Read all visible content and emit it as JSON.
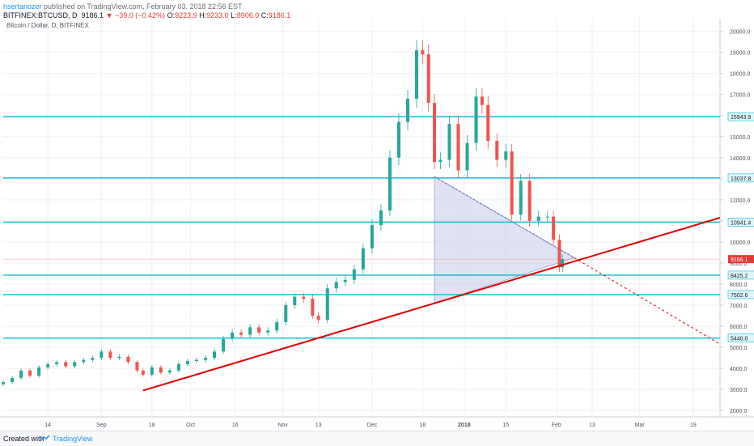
{
  "header": {
    "author": "hsertanozer",
    "published": "published on TradingView.com, February 03, 2018 22:56 EST",
    "symbol": "BITFINEX:BTCUSD, D",
    "last": "9186.1",
    "change": "−39.0 (−0.42%)",
    "o_label": "O:",
    "o_value": "9223.9",
    "h_label": "H:",
    "h_value": "9233.0",
    "l_label": "L:",
    "l_value": "8906.0",
    "c_label": "C:",
    "c_value": "9186.1"
  },
  "footer": {
    "created_with": "Created with",
    "brand": "TradingView"
  },
  "colors": {
    "up": "#26a69a",
    "down": "#ef5350",
    "trendline": "#e00000",
    "level": "#00bcd4",
    "triangle_fill": "#c5cae9",
    "axis_text": "#4c525e",
    "price_tag": "#e53935"
  },
  "chart_data": {
    "type": "candlestick",
    "title": "Bitcoin / Dollar, D, BITFINEX",
    "x_axis": {
      "range": [
        "2017-07-30",
        "2018-03-28"
      ],
      "ticks": [
        {
          "date": "2017-08-14",
          "label": "14"
        },
        {
          "date": "2017-09-01",
          "label": "Sep"
        },
        {
          "date": "2017-09-18",
          "label": "18"
        },
        {
          "date": "2017-10-01",
          "label": "Oct"
        },
        {
          "date": "2017-10-16",
          "label": "16"
        },
        {
          "date": "2017-11-01",
          "label": "Nov"
        },
        {
          "date": "2017-11-13",
          "label": "13"
        },
        {
          "date": "2017-12-01",
          "label": "Dec"
        },
        {
          "date": "2017-12-18",
          "label": "18"
        },
        {
          "date": "2018-01-01",
          "label": "2018"
        },
        {
          "date": "2018-01-15",
          "label": "15"
        },
        {
          "date": "2018-02-01",
          "label": "Feb"
        },
        {
          "date": "2018-02-13",
          "label": "13"
        },
        {
          "date": "2018-03-01",
          "label": "Mar"
        },
        {
          "date": "2018-03-19",
          "label": "19"
        }
      ]
    },
    "y_axis": {
      "range": [
        1700,
        20600
      ],
      "ticks": [
        "2000.0",
        "3000.0",
        "4000.0",
        "5000.0",
        "6000.0",
        "7000.0",
        "8000.0",
        "9000.0",
        "10000.0",
        "11000.0",
        "12000.0",
        "13000.0",
        "14000.0",
        "15000.0",
        "16000.0",
        "17000.0",
        "18000.0",
        "19000.0",
        "20000.0"
      ]
    },
    "last_price": {
      "value": 9186.1,
      "label": "9186.1"
    },
    "horizontal_levels": [
      {
        "value": 15943.9,
        "label": "15943.9"
      },
      {
        "value": 13037.8,
        "label": "13037.8"
      },
      {
        "value": 10941.4,
        "label": "10941.4"
      },
      {
        "value": 8425.2,
        "label": "8425.2"
      },
      {
        "value": 7502.6,
        "label": "7502.6"
      },
      {
        "value": 5440.0,
        "label": "5440.0"
      }
    ],
    "trendline_support": {
      "from": {
        "date": "2017-09-15",
        "value": 2950
      },
      "to": {
        "date": "2018-03-28",
        "value": 11150
      }
    },
    "trendline_resistance": {
      "from": {
        "date": "2017-12-22",
        "value": 13100
      },
      "to": {
        "date": "2018-02-07",
        "value": 9250
      },
      "dashed_to": {
        "date": "2018-03-28",
        "value": 5150
      }
    },
    "triangle": {
      "points": [
        {
          "date": "2017-12-22",
          "value": 13100
        },
        {
          "date": "2017-12-22",
          "value": 7100
        },
        {
          "date": "2018-02-07",
          "value": 9250
        }
      ]
    },
    "candles": [
      [
        "2017-07-30",
        3350
      ],
      [
        "2017-08-02",
        3550
      ],
      [
        "2017-08-05",
        3900
      ],
      [
        "2017-08-08",
        3650
      ],
      [
        "2017-08-11",
        4050
      ],
      [
        "2017-08-14",
        4200
      ],
      [
        "2017-08-17",
        4300
      ],
      [
        "2017-08-20",
        4100
      ],
      [
        "2017-08-23",
        4300
      ],
      [
        "2017-08-26",
        4400
      ],
      [
        "2017-08-29",
        4500
      ],
      [
        "2017-09-01",
        4800
      ],
      [
        "2017-09-04",
        4500
      ],
      [
        "2017-09-07",
        4550
      ],
      [
        "2017-09-10",
        4300
      ],
      [
        "2017-09-13",
        3900
      ],
      [
        "2017-09-15",
        3700
      ],
      [
        "2017-09-18",
        4050
      ],
      [
        "2017-09-21",
        3800
      ],
      [
        "2017-09-24",
        3900
      ],
      [
        "2017-09-27",
        4200
      ],
      [
        "2017-09-30",
        4350
      ],
      [
        "2017-10-03",
        4400
      ],
      [
        "2017-10-06",
        4500
      ],
      [
        "2017-10-09",
        4800
      ],
      [
        "2017-10-12",
        5400
      ],
      [
        "2017-10-15",
        5700
      ],
      [
        "2017-10-18",
        5600
      ],
      [
        "2017-10-21",
        5950
      ],
      [
        "2017-10-24",
        5700
      ],
      [
        "2017-10-27",
        5800
      ],
      [
        "2017-10-30",
        6200
      ],
      [
        "2017-11-02",
        7000
      ],
      [
        "2017-11-05",
        7400
      ],
      [
        "2017-11-08",
        7300
      ],
      [
        "2017-11-11",
        6500
      ],
      [
        "2017-11-13",
        6300
      ],
      [
        "2017-11-16",
        7800
      ],
      [
        "2017-11-19",
        8100
      ],
      [
        "2017-11-22",
        8200
      ],
      [
        "2017-11-25",
        8700
      ],
      [
        "2017-11-28",
        9700
      ],
      [
        "2017-12-01",
        10800
      ],
      [
        "2017-12-04",
        11500
      ],
      [
        "2017-12-07",
        14000
      ],
      [
        "2017-12-10",
        15700
      ],
      [
        "2017-12-13",
        16800
      ],
      [
        "2017-12-16",
        19100
      ],
      [
        "2017-12-18",
        18900
      ],
      [
        "2017-12-20",
        16600
      ],
      [
        "2017-12-22",
        13800
      ],
      [
        "2017-12-24",
        13900
      ],
      [
        "2017-12-27",
        15600
      ],
      [
        "2017-12-30",
        13400
      ],
      [
        "2018-01-02",
        14700
      ],
      [
        "2018-01-05",
        16900
      ],
      [
        "2018-01-07",
        16500
      ],
      [
        "2018-01-09",
        14800
      ],
      [
        "2018-01-12",
        13900
      ],
      [
        "2018-01-15",
        14300
      ],
      [
        "2018-01-17",
        11300
      ],
      [
        "2018-01-20",
        12900
      ],
      [
        "2018-01-23",
        11000
      ],
      [
        "2018-01-26",
        11200
      ],
      [
        "2018-01-29",
        11200
      ],
      [
        "2018-01-31",
        10100
      ],
      [
        "2018-02-02",
        8800
      ],
      [
        "2018-02-03",
        9186
      ]
    ]
  }
}
